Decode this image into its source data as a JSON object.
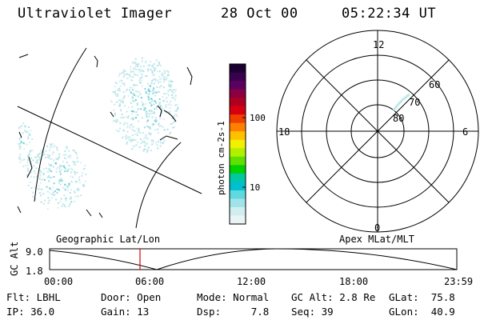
{
  "header": {
    "instrument": "Ultraviolet Imager",
    "date": "28 Oct 00",
    "time": "05:22:34 UT"
  },
  "colorbar": {
    "unit_label": "photon cm-2s-1",
    "ticks": [
      "100",
      "10"
    ],
    "colors": [
      "#1a0030",
      "#3a0050",
      "#5a0060",
      "#8a0040",
      "#b00020",
      "#d80010",
      "#f04000",
      "#ff8000",
      "#ffc000",
      "#f0f000",
      "#b0f000",
      "#60e000",
      "#00d000",
      "#00c8a0",
      "#00c0d0",
      "#60d8e0",
      "#a0e4e8",
      "#d0eef0",
      "#eaf4f6"
    ]
  },
  "polar_plot": {
    "mlt_labels": {
      "top": "12",
      "bottom": "0",
      "left": "18",
      "right": "6"
    },
    "lat_labels": [
      "60",
      "70",
      "80"
    ]
  },
  "altitude_plot": {
    "left_title": "Geographic Lat/Lon",
    "right_title": "Apex MLat/MLT",
    "y_axis_label": "GC Alt",
    "y_ticks": [
      "9.0",
      "1.8"
    ],
    "x_ticks": [
      "00:00",
      "06:00",
      "12:00",
      "18:00",
      "23:59"
    ],
    "marker_color": "#e00000"
  },
  "footer": {
    "row1": [
      {
        "label": "Flt:",
        "value": "LBHL"
      },
      {
        "label": "Door:",
        "value": "Open"
      },
      {
        "label": "Mode:",
        "value": "Normal"
      },
      {
        "label": "GC Alt:",
        "value": "2.8 Re"
      },
      {
        "label": "GLat:",
        "value": "75.8"
      }
    ],
    "row2": [
      {
        "label": "IP:",
        "value": "36.0"
      },
      {
        "label": "Gain:",
        "value": "13"
      },
      {
        "label": "Dsp:",
        "value": "7.8"
      },
      {
        "label": "Seq:",
        "value": "39"
      },
      {
        "label": "GLon:",
        "value": "40.9"
      }
    ]
  }
}
